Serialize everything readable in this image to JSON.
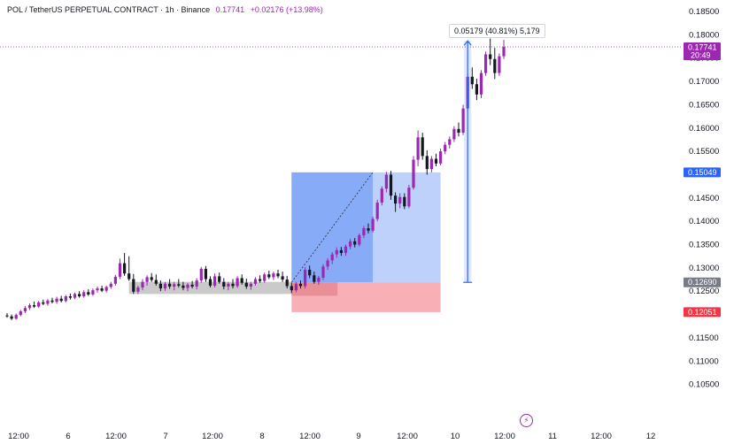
{
  "header": {
    "symbol": "POL / TetherUS PERPETUAL CONTRACT · 1h · Binance",
    "price": "0.17741",
    "change": "+0.02176 (+13.98%)"
  },
  "measure": {
    "label": "0.05179 (40.81%) 5,179"
  },
  "price_tags": {
    "last_price": "0.17741",
    "countdown": "20:49",
    "target": "0.15049",
    "entry": "0.12690",
    "stop": "0.12051"
  },
  "colors": {
    "bull": "#9c27b0",
    "bear": "#131722",
    "target_zone": "#5b8cf4",
    "stop_zone": "#f7a1a8",
    "entry_tag": "#787b86",
    "target_tag": "#2962ff",
    "stop_tag": "#f23645",
    "measure_line": "#2962ff"
  },
  "chart_data": {
    "type": "candlestick",
    "title": "POL / TetherUS PERPETUAL CONTRACT · 1h · Binance",
    "ylim": [
      0.1,
      0.185
    ],
    "y_ticks": [
      "0.18500",
      "0.18000",
      "0.17500",
      "0.17000",
      "0.16500",
      "0.16000",
      "0.15500",
      "0.14500",
      "0.14000",
      "0.13500",
      "0.13000",
      "0.12500",
      "0.11500",
      "0.11000",
      "0.10500"
    ],
    "x_ticks": [
      "12:00",
      "6",
      "12:00",
      "7",
      "12:00",
      "8",
      "12:00",
      "9",
      "12:00",
      "10",
      "12:00",
      "11",
      "12:00",
      "12"
    ],
    "start_hour": 0,
    "candles": [
      {
        "t": 0,
        "o": 0.1198,
        "h": 0.1203,
        "l": 0.1193,
        "c": 0.1196
      },
      {
        "t": 1,
        "o": 0.1196,
        "h": 0.12,
        "l": 0.1188,
        "c": 0.1191
      },
      {
        "t": 2,
        "o": 0.1191,
        "h": 0.1202,
        "l": 0.1189,
        "c": 0.1199
      },
      {
        "t": 3,
        "o": 0.1199,
        "h": 0.121,
        "l": 0.1196,
        "c": 0.1207
      },
      {
        "t": 4,
        "o": 0.1207,
        "h": 0.1218,
        "l": 0.1203,
        "c": 0.1214
      },
      {
        "t": 5,
        "o": 0.1214,
        "h": 0.1224,
        "l": 0.121,
        "c": 0.122
      },
      {
        "t": 6,
        "o": 0.122,
        "h": 0.1228,
        "l": 0.1214,
        "c": 0.1217
      },
      {
        "t": 7,
        "o": 0.1217,
        "h": 0.1229,
        "l": 0.1214,
        "c": 0.1226
      },
      {
        "t": 8,
        "o": 0.1226,
        "h": 0.1232,
        "l": 0.122,
        "c": 0.1223
      },
      {
        "t": 9,
        "o": 0.1223,
        "h": 0.1233,
        "l": 0.1219,
        "c": 0.123
      },
      {
        "t": 10,
        "o": 0.123,
        "h": 0.1236,
        "l": 0.1224,
        "c": 0.1227
      },
      {
        "t": 11,
        "o": 0.1227,
        "h": 0.1238,
        "l": 0.1223,
        "c": 0.1234
      },
      {
        "t": 12,
        "o": 0.1234,
        "h": 0.124,
        "l": 0.1226,
        "c": 0.1229
      },
      {
        "t": 13,
        "o": 0.1229,
        "h": 0.1242,
        "l": 0.1226,
        "c": 0.1239
      },
      {
        "t": 14,
        "o": 0.1239,
        "h": 0.1245,
        "l": 0.1232,
        "c": 0.1236
      },
      {
        "t": 15,
        "o": 0.1236,
        "h": 0.1247,
        "l": 0.1233,
        "c": 0.1244
      },
      {
        "t": 16,
        "o": 0.1244,
        "h": 0.125,
        "l": 0.1236,
        "c": 0.1239
      },
      {
        "t": 17,
        "o": 0.1239,
        "h": 0.1252,
        "l": 0.1236,
        "c": 0.1248
      },
      {
        "t": 18,
        "o": 0.1248,
        "h": 0.1254,
        "l": 0.124,
        "c": 0.1243
      },
      {
        "t": 19,
        "o": 0.1243,
        "h": 0.1256,
        "l": 0.124,
        "c": 0.1252
      },
      {
        "t": 20,
        "o": 0.1252,
        "h": 0.126,
        "l": 0.1247,
        "c": 0.1256
      },
      {
        "t": 21,
        "o": 0.1256,
        "h": 0.1262,
        "l": 0.1248,
        "c": 0.1251
      },
      {
        "t": 22,
        "o": 0.1251,
        "h": 0.1262,
        "l": 0.1247,
        "c": 0.1259
      },
      {
        "t": 23,
        "o": 0.1259,
        "h": 0.127,
        "l": 0.1255,
        "c": 0.1266
      },
      {
        "t": 24,
        "o": 0.1266,
        "h": 0.1285,
        "l": 0.1262,
        "c": 0.1281
      },
      {
        "t": 25,
        "o": 0.1281,
        "h": 0.132,
        "l": 0.1276,
        "c": 0.131
      },
      {
        "t": 26,
        "o": 0.131,
        "h": 0.1332,
        "l": 0.1283,
        "c": 0.1288
      },
      {
        "t": 27,
        "o": 0.1288,
        "h": 0.1325,
        "l": 0.1272,
        "c": 0.1276
      },
      {
        "t": 28,
        "o": 0.1276,
        "h": 0.1287,
        "l": 0.1244,
        "c": 0.1249
      },
      {
        "t": 29,
        "o": 0.1249,
        "h": 0.1262,
        "l": 0.1244,
        "c": 0.1258
      },
      {
        "t": 30,
        "o": 0.1258,
        "h": 0.1276,
        "l": 0.1252,
        "c": 0.127
      },
      {
        "t": 31,
        "o": 0.127,
        "h": 0.1284,
        "l": 0.1262,
        "c": 0.128
      },
      {
        "t": 32,
        "o": 0.128,
        "h": 0.1289,
        "l": 0.127,
        "c": 0.1274
      },
      {
        "t": 33,
        "o": 0.1274,
        "h": 0.1286,
        "l": 0.1262,
        "c": 0.1266
      },
      {
        "t": 34,
        "o": 0.1266,
        "h": 0.1273,
        "l": 0.125,
        "c": 0.1256
      },
      {
        "t": 35,
        "o": 0.1256,
        "h": 0.127,
        "l": 0.1251,
        "c": 0.1266
      },
      {
        "t": 36,
        "o": 0.1266,
        "h": 0.1276,
        "l": 0.1255,
        "c": 0.126
      },
      {
        "t": 37,
        "o": 0.126,
        "h": 0.127,
        "l": 0.1252,
        "c": 0.1265
      },
      {
        "t": 38,
        "o": 0.1265,
        "h": 0.1276,
        "l": 0.1258,
        "c": 0.1262
      },
      {
        "t": 39,
        "o": 0.1262,
        "h": 0.127,
        "l": 0.1252,
        "c": 0.1257
      },
      {
        "t": 40,
        "o": 0.1257,
        "h": 0.1268,
        "l": 0.125,
        "c": 0.1264
      },
      {
        "t": 41,
        "o": 0.1264,
        "h": 0.1272,
        "l": 0.1256,
        "c": 0.126
      },
      {
        "t": 42,
        "o": 0.126,
        "h": 0.1278,
        "l": 0.1254,
        "c": 0.1273
      },
      {
        "t": 43,
        "o": 0.1273,
        "h": 0.1302,
        "l": 0.1268,
        "c": 0.1298
      },
      {
        "t": 44,
        "o": 0.1298,
        "h": 0.1304,
        "l": 0.127,
        "c": 0.1276
      },
      {
        "t": 45,
        "o": 0.1276,
        "h": 0.1282,
        "l": 0.1258,
        "c": 0.1262
      },
      {
        "t": 46,
        "o": 0.1262,
        "h": 0.1288,
        "l": 0.1258,
        "c": 0.1282
      },
      {
        "t": 47,
        "o": 0.1282,
        "h": 0.129,
        "l": 0.1266,
        "c": 0.127
      },
      {
        "t": 48,
        "o": 0.127,
        "h": 0.1278,
        "l": 0.1254,
        "c": 0.126
      },
      {
        "t": 49,
        "o": 0.126,
        "h": 0.127,
        "l": 0.1252,
        "c": 0.1266
      },
      {
        "t": 50,
        "o": 0.1266,
        "h": 0.1276,
        "l": 0.1256,
        "c": 0.1261
      },
      {
        "t": 51,
        "o": 0.1261,
        "h": 0.1282,
        "l": 0.1257,
        "c": 0.1278
      },
      {
        "t": 52,
        "o": 0.1278,
        "h": 0.1286,
        "l": 0.1264,
        "c": 0.1268
      },
      {
        "t": 53,
        "o": 0.1268,
        "h": 0.1277,
        "l": 0.1255,
        "c": 0.126
      },
      {
        "t": 54,
        "o": 0.126,
        "h": 0.127,
        "l": 0.1253,
        "c": 0.1266
      },
      {
        "t": 55,
        "o": 0.1266,
        "h": 0.128,
        "l": 0.1262,
        "c": 0.1276
      },
      {
        "t": 56,
        "o": 0.1276,
        "h": 0.1284,
        "l": 0.1268,
        "c": 0.1272
      },
      {
        "t": 57,
        "o": 0.1272,
        "h": 0.129,
        "l": 0.1268,
        "c": 0.1286
      },
      {
        "t": 58,
        "o": 0.1286,
        "h": 0.1294,
        "l": 0.1276,
        "c": 0.128
      },
      {
        "t": 59,
        "o": 0.128,
        "h": 0.1292,
        "l": 0.1274,
        "c": 0.1288
      },
      {
        "t": 60,
        "o": 0.1288,
        "h": 0.1296,
        "l": 0.1278,
        "c": 0.1282
      },
      {
        "t": 61,
        "o": 0.1282,
        "h": 0.1292,
        "l": 0.127,
        "c": 0.1275
      },
      {
        "t": 62,
        "o": 0.1275,
        "h": 0.1283,
        "l": 0.1256,
        "c": 0.1261
      },
      {
        "t": 63,
        "o": 0.1261,
        "h": 0.1268,
        "l": 0.1246,
        "c": 0.1252
      },
      {
        "t": 64,
        "o": 0.1252,
        "h": 0.127,
        "l": 0.1248,
        "c": 0.1266
      },
      {
        "t": 65,
        "o": 0.1266,
        "h": 0.1273,
        "l": 0.1256,
        "c": 0.1261
      },
      {
        "t": 66,
        "o": 0.1261,
        "h": 0.1301,
        "l": 0.1256,
        "c": 0.1296
      },
      {
        "t": 67,
        "o": 0.1296,
        "h": 0.1305,
        "l": 0.1278,
        "c": 0.1284
      },
      {
        "t": 68,
        "o": 0.1284,
        "h": 0.1292,
        "l": 0.1266,
        "c": 0.127
      },
      {
        "t": 69,
        "o": 0.127,
        "h": 0.1283,
        "l": 0.1264,
        "c": 0.1279
      },
      {
        "t": 70,
        "o": 0.1279,
        "h": 0.1308,
        "l": 0.1274,
        "c": 0.1303
      },
      {
        "t": 71,
        "o": 0.1303,
        "h": 0.1321,
        "l": 0.1296,
        "c": 0.1316
      },
      {
        "t": 72,
        "o": 0.1316,
        "h": 0.1334,
        "l": 0.1308,
        "c": 0.1329
      },
      {
        "t": 73,
        "o": 0.1329,
        "h": 0.1344,
        "l": 0.1322,
        "c": 0.1338
      },
      {
        "t": 74,
        "o": 0.1338,
        "h": 0.1345,
        "l": 0.1326,
        "c": 0.1332
      },
      {
        "t": 75,
        "o": 0.1332,
        "h": 0.135,
        "l": 0.1326,
        "c": 0.1346
      },
      {
        "t": 76,
        "o": 0.1346,
        "h": 0.1362,
        "l": 0.134,
        "c": 0.1357
      },
      {
        "t": 77,
        "o": 0.1357,
        "h": 0.1364,
        "l": 0.1344,
        "c": 0.135
      },
      {
        "t": 78,
        "o": 0.135,
        "h": 0.1374,
        "l": 0.1346,
        "c": 0.137
      },
      {
        "t": 79,
        "o": 0.137,
        "h": 0.139,
        "l": 0.1364,
        "c": 0.1385
      },
      {
        "t": 80,
        "o": 0.1385,
        "h": 0.1395,
        "l": 0.1374,
        "c": 0.138
      },
      {
        "t": 81,
        "o": 0.138,
        "h": 0.141,
        "l": 0.1376,
        "c": 0.1405
      },
      {
        "t": 82,
        "o": 0.1405,
        "h": 0.1446,
        "l": 0.14,
        "c": 0.144
      },
      {
        "t": 83,
        "o": 0.144,
        "h": 0.1475,
        "l": 0.1434,
        "c": 0.147
      },
      {
        "t": 84,
        "o": 0.147,
        "h": 0.1506,
        "l": 0.1462,
        "c": 0.15
      },
      {
        "t": 85,
        "o": 0.15,
        "h": 0.1508,
        "l": 0.1446,
        "c": 0.1455
      },
      {
        "t": 86,
        "o": 0.1455,
        "h": 0.1462,
        "l": 0.142,
        "c": 0.1438
      },
      {
        "t": 87,
        "o": 0.1438,
        "h": 0.146,
        "l": 0.1428,
        "c": 0.1452
      },
      {
        "t": 88,
        "o": 0.1452,
        "h": 0.146,
        "l": 0.1426,
        "c": 0.1432
      },
      {
        "t": 89,
        "o": 0.1432,
        "h": 0.1478,
        "l": 0.1428,
        "c": 0.1472
      },
      {
        "t": 90,
        "o": 0.1472,
        "h": 0.154,
        "l": 0.1468,
        "c": 0.1532
      },
      {
        "t": 91,
        "o": 0.1532,
        "h": 0.1595,
        "l": 0.1518,
        "c": 0.158
      },
      {
        "t": 92,
        "o": 0.158,
        "h": 0.159,
        "l": 0.1532,
        "c": 0.154
      },
      {
        "t": 93,
        "o": 0.154,
        "h": 0.1552,
        "l": 0.15,
        "c": 0.1512
      },
      {
        "t": 94,
        "o": 0.1512,
        "h": 0.154,
        "l": 0.1505,
        "c": 0.1534
      },
      {
        "t": 95,
        "o": 0.1534,
        "h": 0.1545,
        "l": 0.1518,
        "c": 0.1524
      },
      {
        "t": 96,
        "o": 0.1524,
        "h": 0.1556,
        "l": 0.152,
        "c": 0.155
      },
      {
        "t": 97,
        "o": 0.155,
        "h": 0.157,
        "l": 0.1544,
        "c": 0.1564
      },
      {
        "t": 98,
        "o": 0.1564,
        "h": 0.1582,
        "l": 0.1556,
        "c": 0.1576
      },
      {
        "t": 99,
        "o": 0.1576,
        "h": 0.1604,
        "l": 0.157,
        "c": 0.1598
      },
      {
        "t": 100,
        "o": 0.1598,
        "h": 0.1612,
        "l": 0.1582,
        "c": 0.159
      },
      {
        "t": 101,
        "o": 0.159,
        "h": 0.165,
        "l": 0.1585,
        "c": 0.1642
      },
      {
        "t": 102,
        "o": 0.1642,
        "h": 0.1716,
        "l": 0.1636,
        "c": 0.171
      },
      {
        "t": 103,
        "o": 0.171,
        "h": 0.173,
        "l": 0.1684,
        "c": 0.1694
      },
      {
        "t": 104,
        "o": 0.1694,
        "h": 0.1706,
        "l": 0.166,
        "c": 0.1672
      },
      {
        "t": 105,
        "o": 0.1672,
        "h": 0.1724,
        "l": 0.1664,
        "c": 0.1718
      },
      {
        "t": 106,
        "o": 0.1718,
        "h": 0.1764,
        "l": 0.1712,
        "c": 0.1758
      },
      {
        "t": 107,
        "o": 0.1758,
        "h": 0.1792,
        "l": 0.1735,
        "c": 0.1748
      },
      {
        "t": 108,
        "o": 0.1748,
        "h": 0.1772,
        "l": 0.1705,
        "c": 0.1718
      },
      {
        "t": 109,
        "o": 0.1718,
        "h": 0.176,
        "l": 0.1712,
        "c": 0.1754
      },
      {
        "t": 110,
        "o": 0.1754,
        "h": 0.1789,
        "l": 0.1748,
        "c": 0.1774
      }
    ],
    "annotations": {
      "consolidation": {
        "t0": 27,
        "t1": 63,
        "y0": 0.1244,
        "y1": 0.127
      },
      "long_position": {
        "t0": 63,
        "t1": 96,
        "entry": 0.1269,
        "target": 0.15049,
        "stop": 0.12051,
        "fill_end": 81
      },
      "measure": {
        "t": 102,
        "from": 0.1269,
        "to": 0.17869
      },
      "last_price_line": 0.17741
    }
  }
}
